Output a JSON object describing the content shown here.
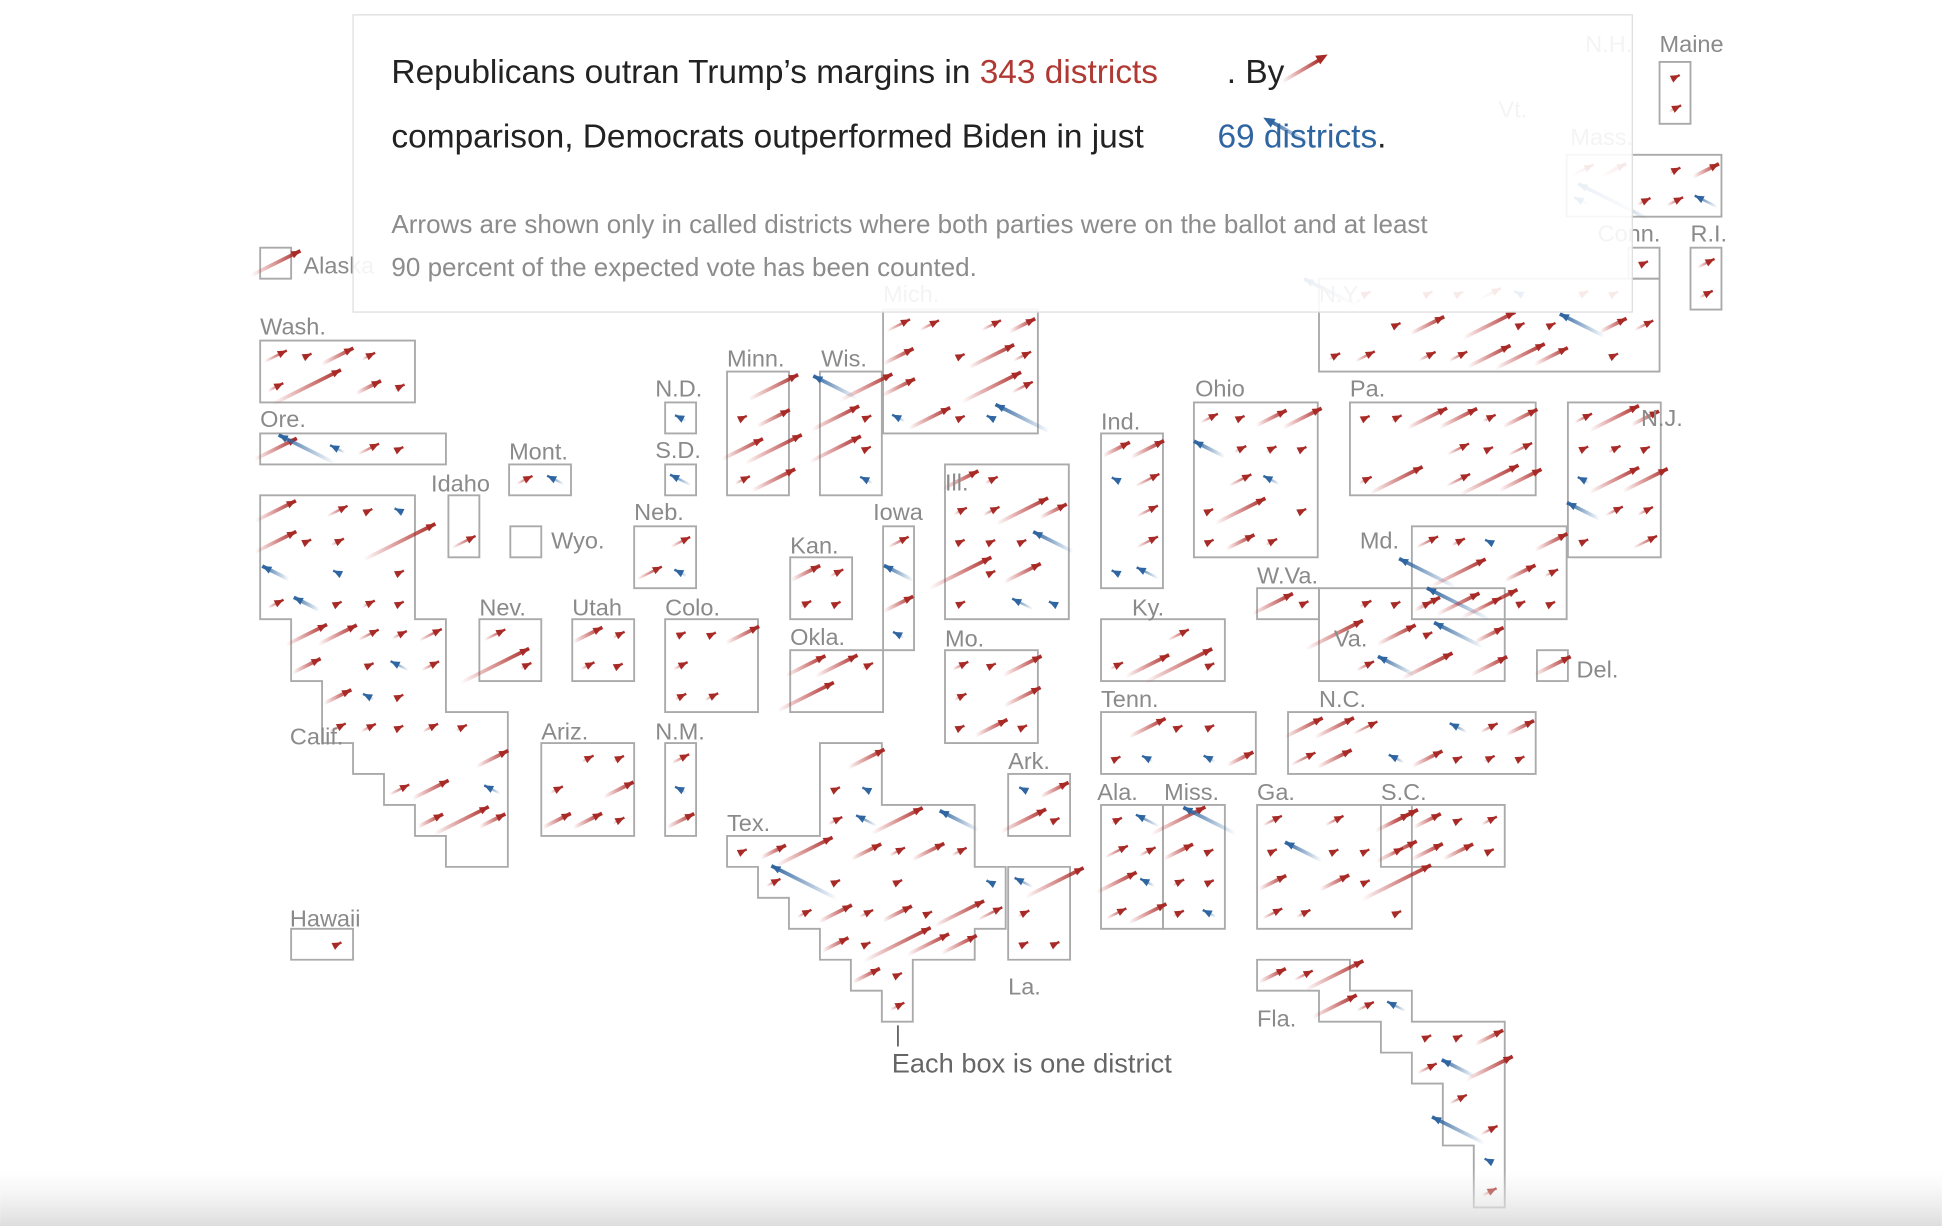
{
  "header": {
    "line1_a": "Republicans outran Trump’s margins in ",
    "line1_highlight": "343 districts",
    "line1_b": " . By",
    "line2_a": "comparison, Democrats outperformed Biden in just ",
    "line2_highlight": "69 districts",
    "line2_b": ".",
    "note_lines": [
      "Arrows are shown only in called districts where both parties were on the ballot and at least",
      "90 percent of the expected vote has been counted."
    ]
  },
  "states": [
    {
      "label": "Maine"
    },
    {
      "label": "N.H."
    },
    {
      "label": "Vt."
    },
    {
      "label": "Mass."
    },
    {
      "label": "R.I."
    },
    {
      "label": "Conn."
    },
    {
      "label": "Alaska"
    },
    {
      "label": "Wash."
    },
    {
      "label": "Ore."
    },
    {
      "label": "Mont."
    },
    {
      "label": "Idaho"
    },
    {
      "label": "Wyo."
    },
    {
      "label": "N.D."
    },
    {
      "label": "S.D."
    },
    {
      "label": "Neb."
    },
    {
      "label": "Minn."
    },
    {
      "label": "Wis."
    },
    {
      "label": "Mich."
    },
    {
      "label": "Iowa"
    },
    {
      "label": "Ill."
    },
    {
      "label": "Ind."
    },
    {
      "label": "Ohio"
    },
    {
      "label": "Pa."
    },
    {
      "label": "N.Y."
    },
    {
      "label": "N.J."
    },
    {
      "label": "Md."
    },
    {
      "label": "Del."
    },
    {
      "label": "Nev."
    },
    {
      "label": "Utah"
    },
    {
      "label": "Colo."
    },
    {
      "label": "Kan."
    },
    {
      "label": "Okla."
    },
    {
      "label": "Mo."
    },
    {
      "label": "Ky."
    },
    {
      "label": "W.Va."
    },
    {
      "label": "Va."
    },
    {
      "label": "Tenn."
    },
    {
      "label": "N.C."
    },
    {
      "label": "Calif."
    },
    {
      "label": "Ariz."
    },
    {
      "label": "N.M."
    },
    {
      "label": "Ark."
    },
    {
      "label": "Ala."
    },
    {
      "label": "Miss."
    },
    {
      "label": "Ga."
    },
    {
      "label": "S.C."
    },
    {
      "label": "Tex."
    },
    {
      "label": "La."
    },
    {
      "label": "Fla."
    },
    {
      "label": "Hawaii"
    }
  ],
  "footnote": "Each box is one district"
}
